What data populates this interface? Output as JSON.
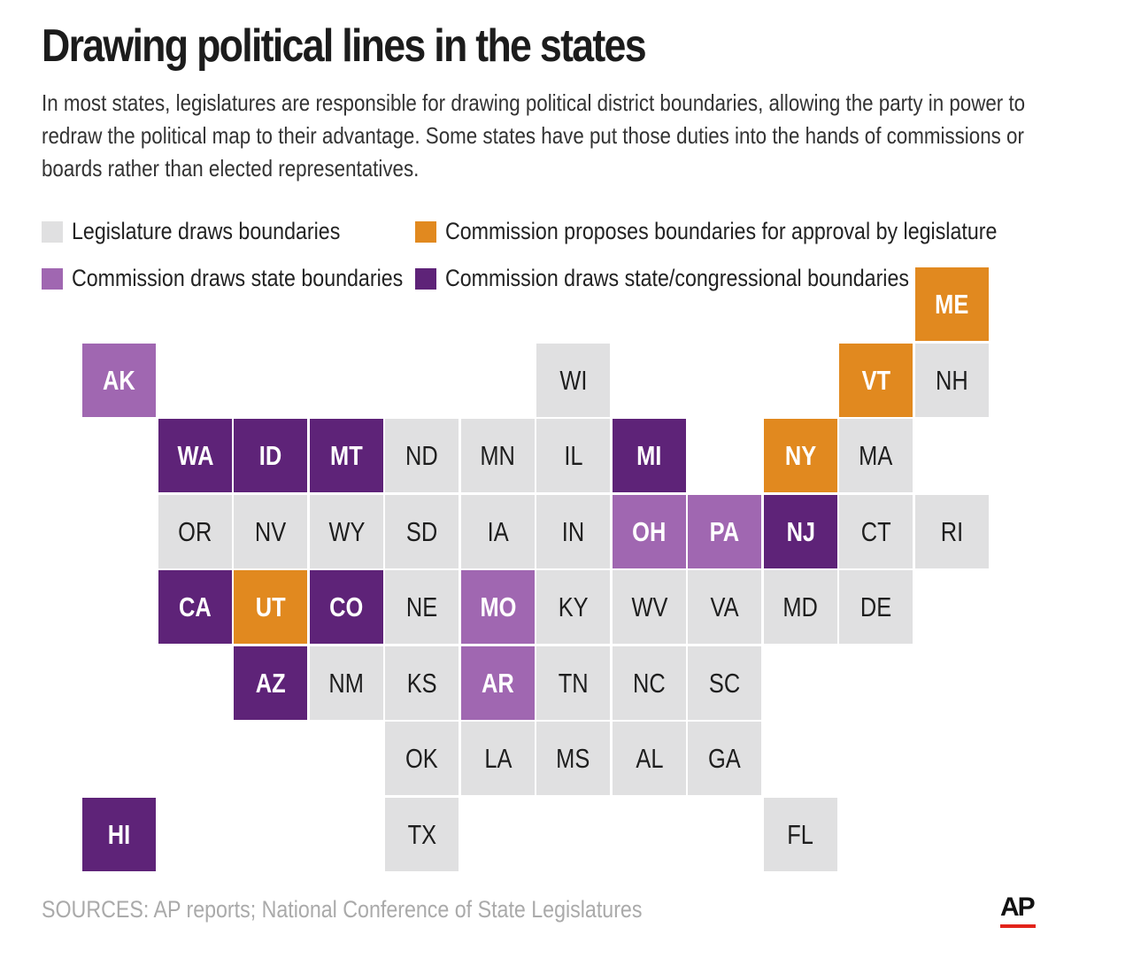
{
  "title": "Drawing political lines in the states",
  "subtitle": "In most states, legislatures are responsible for drawing political district boundaries, allowing the party in power to redraw the political map to their advantage. Some states have put those duties into the hands of commissions or boards rather than elected representatives.",
  "legend": [
    {
      "key": "legislature",
      "label": "Legislature draws boundaries",
      "color": "#e0e0e1"
    },
    {
      "key": "proposes",
      "label": "Commission proposes boundaries for approval by legislature",
      "color": "#e1891f"
    },
    {
      "key": "state",
      "label": "Commission draws state boundaries",
      "color": "#a067b1"
    },
    {
      "key": "both",
      "label": "Commission draws state/congressional boundaries",
      "color": "#5e2378"
    }
  ],
  "states": [
    {
      "abbr": "ME",
      "row": 0,
      "col": 11,
      "cat": "proposes"
    },
    {
      "abbr": "AK",
      "row": 1,
      "col": 0,
      "cat": "state"
    },
    {
      "abbr": "WI",
      "row": 1,
      "col": 6,
      "cat": "legislature"
    },
    {
      "abbr": "VT",
      "row": 1,
      "col": 10,
      "cat": "proposes"
    },
    {
      "abbr": "NH",
      "row": 1,
      "col": 11,
      "cat": "legislature"
    },
    {
      "abbr": "WA",
      "row": 2,
      "col": 1,
      "cat": "both"
    },
    {
      "abbr": "ID",
      "row": 2,
      "col": 2,
      "cat": "both"
    },
    {
      "abbr": "MT",
      "row": 2,
      "col": 3,
      "cat": "both"
    },
    {
      "abbr": "ND",
      "row": 2,
      "col": 4,
      "cat": "legislature"
    },
    {
      "abbr": "MN",
      "row": 2,
      "col": 5,
      "cat": "legislature"
    },
    {
      "abbr": "IL",
      "row": 2,
      "col": 6,
      "cat": "legislature"
    },
    {
      "abbr": "MI",
      "row": 2,
      "col": 7,
      "cat": "both"
    },
    {
      "abbr": "NY",
      "row": 2,
      "col": 9,
      "cat": "proposes"
    },
    {
      "abbr": "MA",
      "row": 2,
      "col": 10,
      "cat": "legislature"
    },
    {
      "abbr": "OR",
      "row": 3,
      "col": 1,
      "cat": "legislature"
    },
    {
      "abbr": "NV",
      "row": 3,
      "col": 2,
      "cat": "legislature"
    },
    {
      "abbr": "WY",
      "row": 3,
      "col": 3,
      "cat": "legislature"
    },
    {
      "abbr": "SD",
      "row": 3,
      "col": 4,
      "cat": "legislature"
    },
    {
      "abbr": "IA",
      "row": 3,
      "col": 5,
      "cat": "legislature"
    },
    {
      "abbr": "IN",
      "row": 3,
      "col": 6,
      "cat": "legislature"
    },
    {
      "abbr": "OH",
      "row": 3,
      "col": 7,
      "cat": "state"
    },
    {
      "abbr": "PA",
      "row": 3,
      "col": 8,
      "cat": "state"
    },
    {
      "abbr": "NJ",
      "row": 3,
      "col": 9,
      "cat": "both"
    },
    {
      "abbr": "CT",
      "row": 3,
      "col": 10,
      "cat": "legislature"
    },
    {
      "abbr": "RI",
      "row": 3,
      "col": 11,
      "cat": "legislature"
    },
    {
      "abbr": "CA",
      "row": 4,
      "col": 1,
      "cat": "both"
    },
    {
      "abbr": "UT",
      "row": 4,
      "col": 2,
      "cat": "proposes"
    },
    {
      "abbr": "CO",
      "row": 4,
      "col": 3,
      "cat": "both"
    },
    {
      "abbr": "NE",
      "row": 4,
      "col": 4,
      "cat": "legislature"
    },
    {
      "abbr": "MO",
      "row": 4,
      "col": 5,
      "cat": "state"
    },
    {
      "abbr": "KY",
      "row": 4,
      "col": 6,
      "cat": "legislature"
    },
    {
      "abbr": "WV",
      "row": 4,
      "col": 7,
      "cat": "legislature"
    },
    {
      "abbr": "VA",
      "row": 4,
      "col": 8,
      "cat": "legislature"
    },
    {
      "abbr": "MD",
      "row": 4,
      "col": 9,
      "cat": "legislature"
    },
    {
      "abbr": "DE",
      "row": 4,
      "col": 10,
      "cat": "legislature"
    },
    {
      "abbr": "AZ",
      "row": 5,
      "col": 2,
      "cat": "both"
    },
    {
      "abbr": "NM",
      "row": 5,
      "col": 3,
      "cat": "legislature"
    },
    {
      "abbr": "KS",
      "row": 5,
      "col": 4,
      "cat": "legislature"
    },
    {
      "abbr": "AR",
      "row": 5,
      "col": 5,
      "cat": "state"
    },
    {
      "abbr": "TN",
      "row": 5,
      "col": 6,
      "cat": "legislature"
    },
    {
      "abbr": "NC",
      "row": 5,
      "col": 7,
      "cat": "legislature"
    },
    {
      "abbr": "SC",
      "row": 5,
      "col": 8,
      "cat": "legislature"
    },
    {
      "abbr": "OK",
      "row": 6,
      "col": 4,
      "cat": "legislature"
    },
    {
      "abbr": "LA",
      "row": 6,
      "col": 5,
      "cat": "legislature"
    },
    {
      "abbr": "MS",
      "row": 6,
      "col": 6,
      "cat": "legislature"
    },
    {
      "abbr": "AL",
      "row": 6,
      "col": 7,
      "cat": "legislature"
    },
    {
      "abbr": "GA",
      "row": 6,
      "col": 8,
      "cat": "legislature"
    },
    {
      "abbr": "HI",
      "row": 7,
      "col": 0,
      "cat": "both"
    },
    {
      "abbr": "TX",
      "row": 7,
      "col": 4,
      "cat": "legislature"
    },
    {
      "abbr": "FL",
      "row": 7,
      "col": 9,
      "cat": "legislature"
    }
  ],
  "source": "SOURCES: AP reports; National Conference of State Legislatures",
  "logo": {
    "text": "AP",
    "accent": "#e2231a"
  }
}
